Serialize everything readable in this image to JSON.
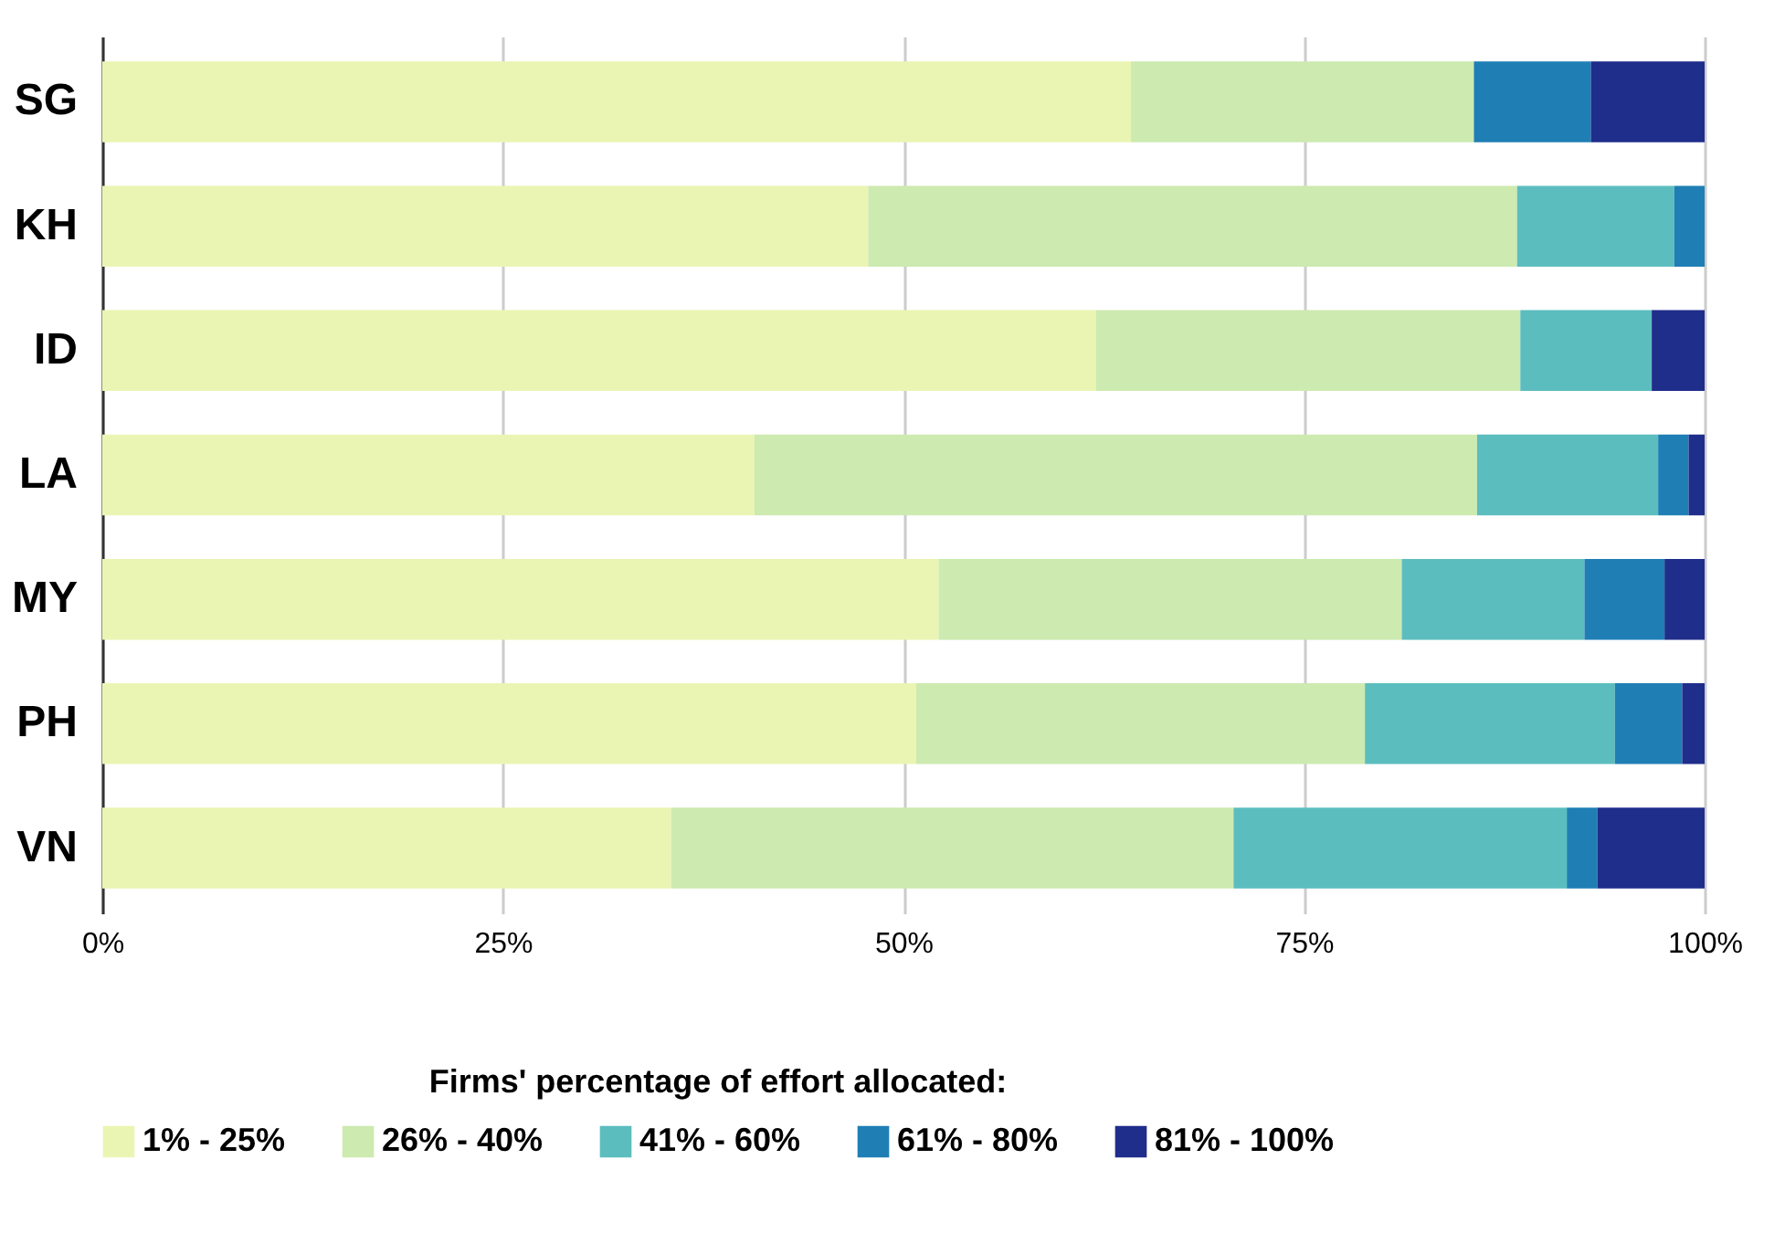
{
  "chart_data": {
    "type": "bar",
    "orientation": "horizontal",
    "stacked": true,
    "categories": [
      "SG",
      "KH",
      "ID",
      "LA",
      "MY",
      "PH",
      "VN"
    ],
    "legend_title": "Firms' percentage of effort allocated:",
    "series": [
      {
        "name": "1% - 25%",
        "color": "#eaf5b3",
        "values": [
          64.2,
          47.8,
          62.0,
          40.7,
          52.2,
          50.8,
          35.5
        ]
      },
      {
        "name": "26% - 40%",
        "color": "#cdeab0",
        "values": [
          21.4,
          40.5,
          26.5,
          45.1,
          28.9,
          28.0,
          35.1
        ]
      },
      {
        "name": "41% - 60%",
        "color": "#5cbdbf",
        "values": [
          0,
          9.8,
          8.2,
          11.3,
          11.4,
          15.6,
          20.8
        ]
      },
      {
        "name": "61% - 80%",
        "color": "#1f7fb5",
        "values": [
          7.3,
          1.9,
          0,
          1.9,
          5.0,
          4.2,
          1.9
        ]
      },
      {
        "name": "81% - 100%",
        "color": "#1f2d8b",
        "values": [
          7.1,
          0,
          3.3,
          1.0,
          2.5,
          1.4,
          6.7
        ]
      }
    ],
    "xlim": [
      0,
      100
    ],
    "xticks": [
      {
        "value": 0,
        "label": "0%"
      },
      {
        "value": 25,
        "label": "25%"
      },
      {
        "value": 50,
        "label": "50%"
      },
      {
        "value": 75,
        "label": "75%"
      },
      {
        "value": 100,
        "label": "100%"
      }
    ],
    "grid": "x",
    "legend": "bottom"
  }
}
